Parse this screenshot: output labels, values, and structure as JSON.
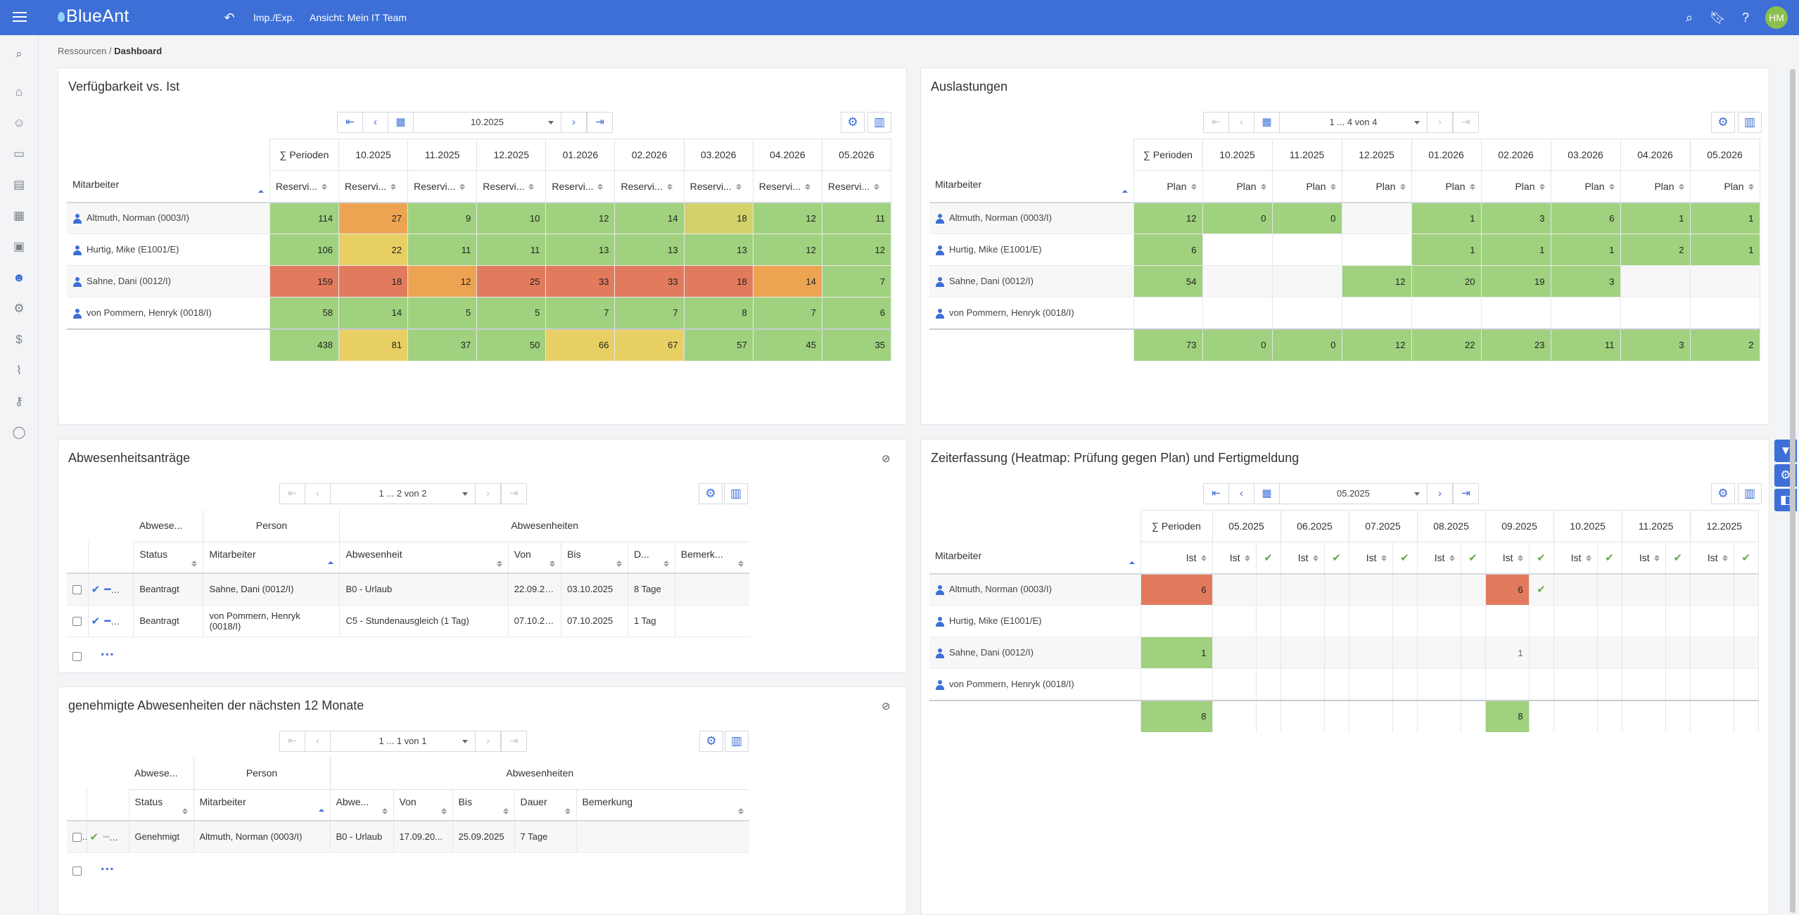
{
  "app": {
    "logo": "BlueAnt",
    "imp_exp": "Imp./Exp.",
    "view": "Ansicht: Mein IT Team",
    "avatar": "HM"
  },
  "breadcrumb": {
    "parent": "Ressourcen",
    "sep": "/",
    "current": "Dashboard"
  },
  "panel1": {
    "title": "Verfügbarkeit vs. Ist",
    "period": "10.2025",
    "sum_label": "∑ Perioden",
    "periods": [
      "10.2025",
      "11.2025",
      "12.2025",
      "01.2026",
      "02.2026",
      "03.2026",
      "04.2026",
      "05.2026"
    ],
    "col_mitarbeiter": "Mitarbeiter",
    "col_value": "Reservi...",
    "rows": [
      {
        "name": "Altmuth, Norman (0003/I)",
        "values": [
          "114",
          "27",
          "9",
          "10",
          "12",
          "14",
          "18",
          "12",
          "11"
        ]
      },
      {
        "name": "Hurtig, Mike (E1001/E)",
        "values": [
          "106",
          "22",
          "11",
          "11",
          "13",
          "13",
          "13",
          "12",
          "12"
        ]
      },
      {
        "name": "Sahne, Dani (0012/I)",
        "values": [
          "159",
          "18",
          "12",
          "25",
          "33",
          "33",
          "18",
          "14",
          "7"
        ]
      },
      {
        "name": "von Pommern, Henryk (0018/I)",
        "values": [
          "58",
          "14",
          "5",
          "5",
          "7",
          "7",
          "8",
          "7",
          "6"
        ]
      }
    ],
    "totals": [
      "438",
      "81",
      "37",
      "50",
      "66",
      "67",
      "57",
      "45",
      "35"
    ]
  },
  "panel2": {
    "title": "Auslastungen",
    "pager": "1 ... 4 von 4",
    "sum_label": "∑ Perioden",
    "periods": [
      "10.2025",
      "11.2025",
      "12.2025",
      "01.2026",
      "02.2026",
      "03.2026",
      "04.2026",
      "05.2026"
    ],
    "col_mitarbeiter": "Mitarbeiter",
    "col_value": "Plan",
    "rows": [
      {
        "name": "Altmuth, Norman (0003/I)",
        "values": [
          "12",
          "0",
          "0",
          "",
          "1",
          "3",
          "6",
          "1",
          "1"
        ]
      },
      {
        "name": "Hurtig, Mike (E1001/E)",
        "values": [
          "6",
          "",
          "",
          "",
          "1",
          "1",
          "1",
          "2",
          "1"
        ]
      },
      {
        "name": "Sahne, Dani (0012/I)",
        "values": [
          "54",
          "",
          "",
          "12",
          "20",
          "19",
          "3",
          "",
          ""
        ]
      },
      {
        "name": "von Pommern, Henryk (0018/I)",
        "values": [
          "",
          "",
          "",
          "",
          "",
          "",
          "",
          "",
          ""
        ]
      }
    ],
    "totals": [
      "73",
      "0",
      "0",
      "12",
      "22",
      "23",
      "11",
      "3",
      "2"
    ]
  },
  "panel3": {
    "title": "Abwesenheitsanträge",
    "pager": "1 ... 2 von 2",
    "group_abwese": "Abwese...",
    "group_person": "Person",
    "group_abwesenheiten": "Abwesenheiten",
    "cols": [
      "Status",
      "Mitarbeiter",
      "Abwesenheit",
      "Von",
      "Bis",
      "D...",
      "Bemerk..."
    ],
    "rows": [
      {
        "status": "Beantragt",
        "mitarbeiter": "Sahne, Dani (0012/I)",
        "abwesenheit": "B0 - Urlaub",
        "von": "22.09.20...",
        "bis": "03.10.2025",
        "dauer": "8 Tage",
        "bemerkung": ""
      },
      {
        "status": "Beantragt",
        "mitarbeiter": "von Pommern, Henryk (0018/I)",
        "abwesenheit": "C5 - Stundenausgleich (1 Tag)",
        "von": "07.10.20...",
        "bis": "07.10.2025",
        "dauer": "1 Tag",
        "bemerkung": ""
      }
    ],
    "more": "..."
  },
  "panel4": {
    "title": "genehmigte Abwesenheiten der nächsten 12 Monate",
    "pager": "1 ... 1 von 1",
    "group_abwese": "Abwese...",
    "group_person": "Person",
    "group_abwesenheiten": "Abwesenheiten",
    "cols": [
      "Status",
      "Mitarbeiter",
      "Abwe...",
      "Von",
      "Bis",
      "Dauer",
      "Bemerkung"
    ],
    "rows": [
      {
        "status": "Genehmigt",
        "mitarbeiter": "Altmuth, Norman (0003/I)",
        "abwesenheit": "B0 - Urlaub",
        "von": "17.09.20...",
        "bis": "25.09.2025",
        "dauer": "7 Tage",
        "bemerkung": ""
      }
    ],
    "more": "..."
  },
  "panel5": {
    "title": "Zeiterfassung (Heatmap: Prüfung gegen Plan) und Fertigmeldung",
    "period": "05.2025",
    "sum_label": "∑ Perioden",
    "periods": [
      "05.2025",
      "06.2025",
      "07.2025",
      "08.2025",
      "09.2025",
      "10.2025",
      "11.2025",
      "12.2025"
    ],
    "col_mitarbeiter": "Mitarbeiter",
    "col_value": "Ist",
    "check": "✔",
    "rows": [
      {
        "name": "Altmuth, Norman (0003/I)",
        "sum": "6",
        "values": [
          "",
          "",
          "",
          "",
          "6",
          "",
          "",
          ""
        ],
        "checks": [
          false,
          false,
          false,
          false,
          true,
          false,
          false,
          false
        ]
      },
      {
        "name": "Hurtig, Mike (E1001/E)",
        "sum": "",
        "values": [
          "",
          "",
          "",
          "",
          "",
          "",
          "",
          ""
        ],
        "checks": [
          false,
          false,
          false,
          false,
          false,
          false,
          false,
          false
        ]
      },
      {
        "name": "Sahne, Dani (0012/I)",
        "sum": "1",
        "values": [
          "",
          "",
          "",
          "",
          "1",
          "",
          "",
          ""
        ],
        "checks": [
          false,
          false,
          false,
          false,
          false,
          false,
          false,
          false
        ]
      },
      {
        "name": "von Pommern, Henryk (0018/I)",
        "sum": "",
        "values": [
          "",
          "",
          "",
          "",
          "",
          "",
          "",
          ""
        ],
        "checks": [
          false,
          false,
          false,
          false,
          false,
          false,
          false,
          false
        ]
      }
    ],
    "totals": {
      "sum": "8",
      "values": [
        "",
        "",
        "",
        "",
        "8",
        "",
        "",
        ""
      ]
    }
  },
  "colors": {
    "accent": "#3d6fd6",
    "green": "#9fd17e",
    "yellow": "#e7cf63",
    "orange": "#eda452",
    "red": "#e27b5e"
  }
}
